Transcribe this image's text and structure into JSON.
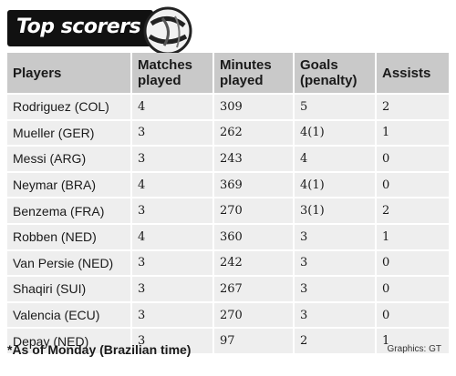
{
  "header": {
    "title": "Top scorers"
  },
  "table": {
    "columns": [
      "Players",
      "Matches played",
      "Minutes played",
      "Goals (penalty)",
      "Assists"
    ],
    "rows": [
      [
        "Rodriguez (COL)",
        "4",
        "309",
        "5",
        "2"
      ],
      [
        "Mueller (GER)",
        "3",
        "262",
        "4(1)",
        "1"
      ],
      [
        "Messi (ARG)",
        "3",
        "243",
        "4",
        "0"
      ],
      [
        "Neymar (BRA)",
        "4",
        "369",
        "4(1)",
        "0"
      ],
      [
        "Benzema (FRA)",
        "3",
        "270",
        "3(1)",
        "2"
      ],
      [
        "Robben (NED)",
        "4",
        "360",
        "3",
        "1"
      ],
      [
        "Van Persie (NED)",
        "3",
        "242",
        "3",
        "0"
      ],
      [
        "Shaqiri (SUI)",
        "3",
        "267",
        "3",
        "0"
      ],
      [
        "Valencia (ECU)",
        "3",
        "270",
        "3",
        "0"
      ],
      [
        "Depay (NED)",
        "3",
        "97",
        "2",
        "1"
      ]
    ]
  },
  "footer": {
    "note": "*As of Monday (Brazilian time)",
    "credit": "Graphics: GT"
  },
  "icons": {
    "ball": "soccer-ball-icon"
  }
}
